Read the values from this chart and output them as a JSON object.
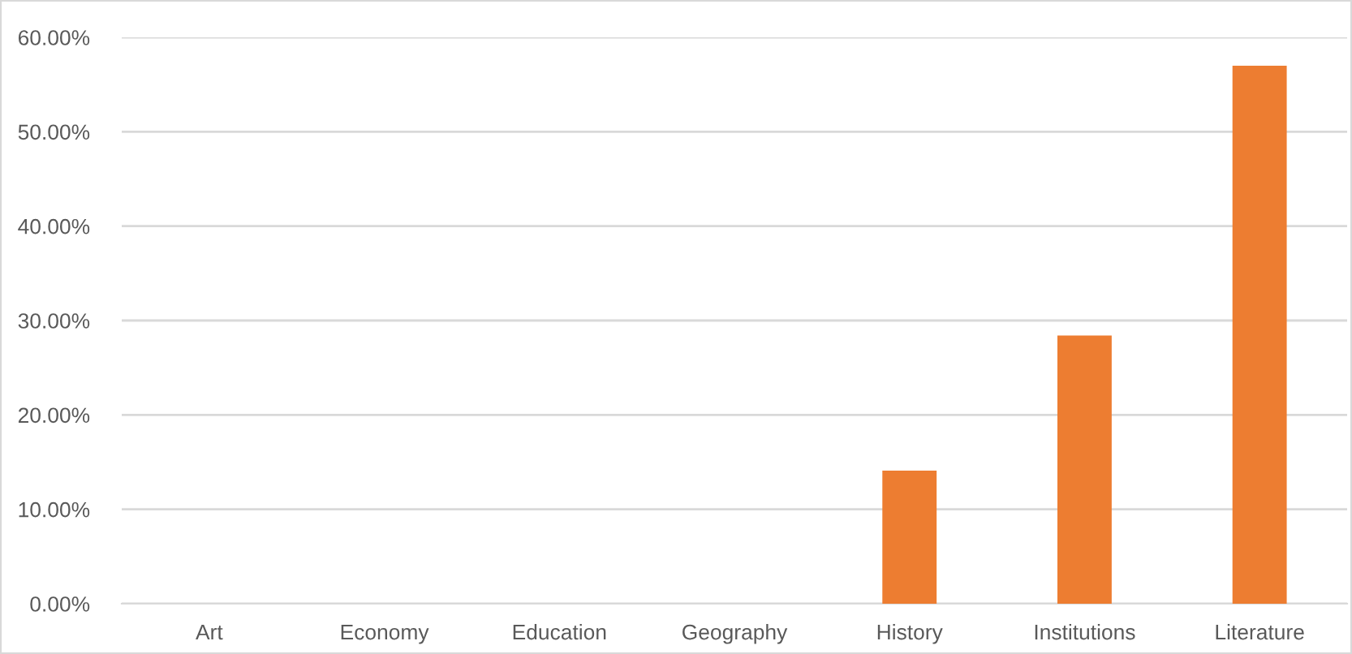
{
  "chart_data": {
    "type": "bar",
    "categories": [
      "Art",
      "Economy",
      "Education",
      "Geography",
      "History",
      "Institutions",
      "Literature"
    ],
    "values": [
      0,
      0,
      0,
      0,
      14.1,
      28.4,
      57.0
    ],
    "color": "#ed7d31",
    "ylim": [
      0,
      60
    ],
    "yticks": [
      {
        "value": 0,
        "label": "0.00%"
      },
      {
        "value": 10,
        "label": "10.00%"
      },
      {
        "value": 20,
        "label": "20.00%"
      },
      {
        "value": 30,
        "label": "30.00%"
      },
      {
        "value": 40,
        "label": "40.00%"
      },
      {
        "value": 50,
        "label": "50.00%"
      },
      {
        "value": 60,
        "label": "60.00%"
      }
    ],
    "grid": "y"
  }
}
